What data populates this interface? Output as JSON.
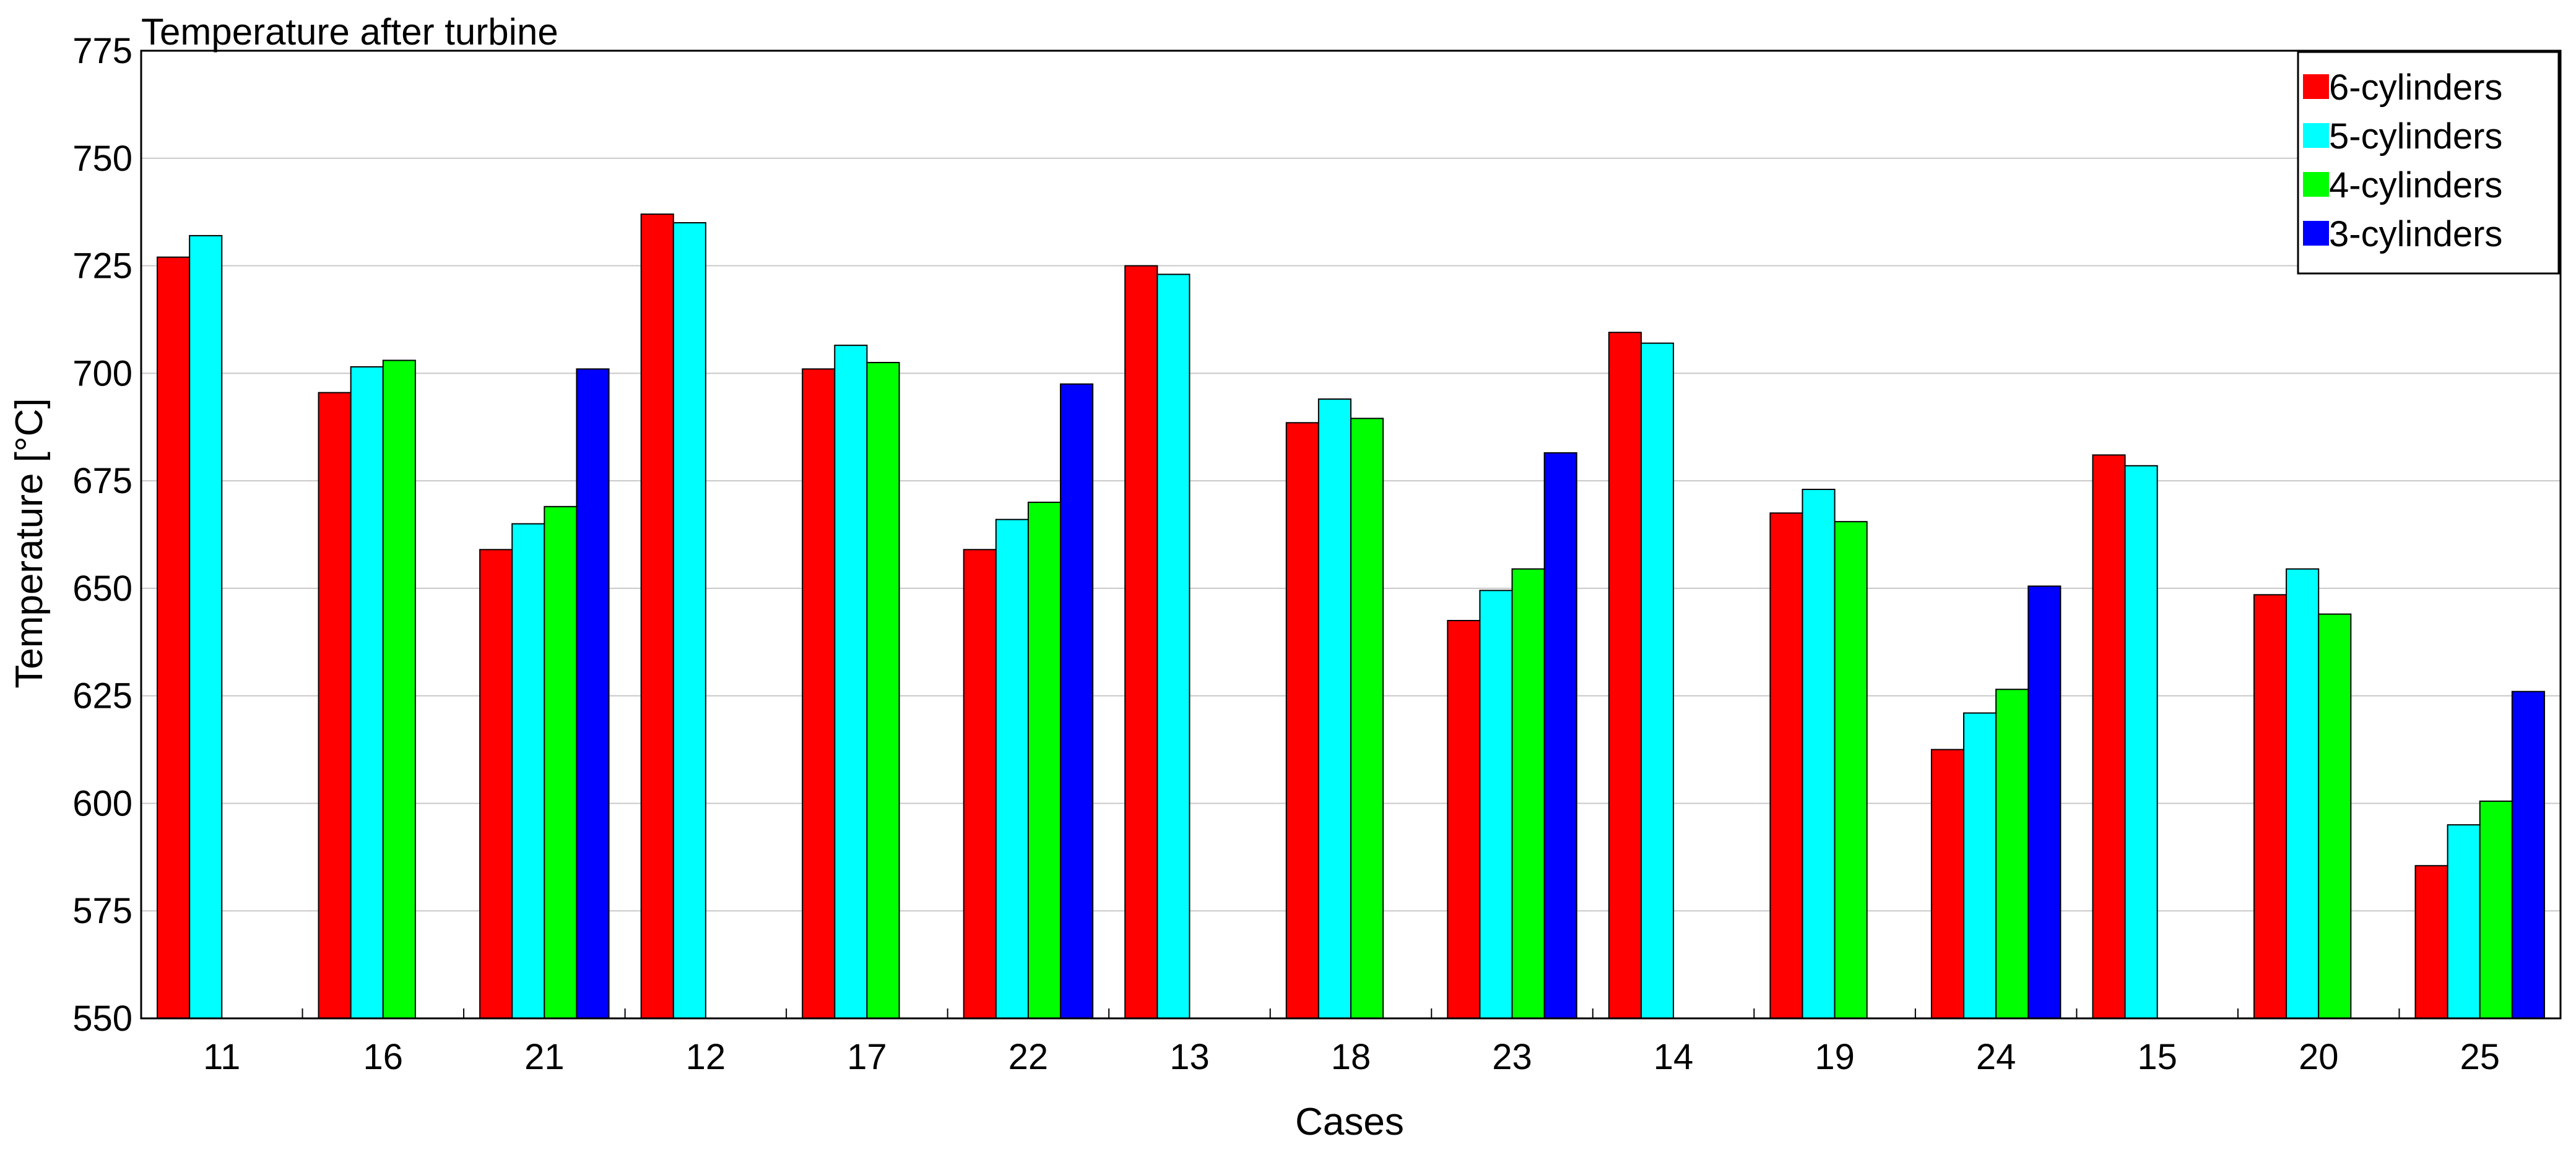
{
  "chart_data": {
    "type": "bar",
    "title": "Temperature after turbine",
    "xlabel": "Cases",
    "ylabel": "Temperature [°C]",
    "ylim": [
      550,
      775
    ],
    "yticks": [
      550,
      575,
      600,
      625,
      650,
      675,
      700,
      725,
      750,
      775
    ],
    "grid": "horizontal",
    "legend_position": "top-right",
    "categories": [
      "11",
      "16",
      "21",
      "12",
      "17",
      "22",
      "13",
      "18",
      "23",
      "14",
      "19",
      "24",
      "15",
      "20",
      "25"
    ],
    "series": [
      {
        "name": "6-cylinders",
        "color": "#ff0000",
        "values": [
          727,
          695.5,
          659,
          737,
          701,
          659,
          725,
          688.5,
          642.5,
          709.5,
          667.5,
          612.5,
          681,
          648.5,
          585.5
        ]
      },
      {
        "name": "5-cylinders",
        "color": "#00ffff",
        "values": [
          732,
          701.5,
          665,
          735,
          706.5,
          666,
          723,
          694,
          649.5,
          707,
          673,
          621,
          678.5,
          654.5,
          595
        ]
      },
      {
        "name": "4-cylinders",
        "color": "#00ff00",
        "values": [
          null,
          703,
          669,
          null,
          702.5,
          670,
          null,
          689.5,
          654.5,
          null,
          665.5,
          626.5,
          null,
          644,
          600.5
        ]
      },
      {
        "name": "3-cylinders",
        "color": "#0000ff",
        "values": [
          null,
          null,
          701,
          null,
          null,
          697.5,
          null,
          null,
          681.5,
          null,
          null,
          650.5,
          null,
          null,
          626
        ]
      }
    ]
  }
}
